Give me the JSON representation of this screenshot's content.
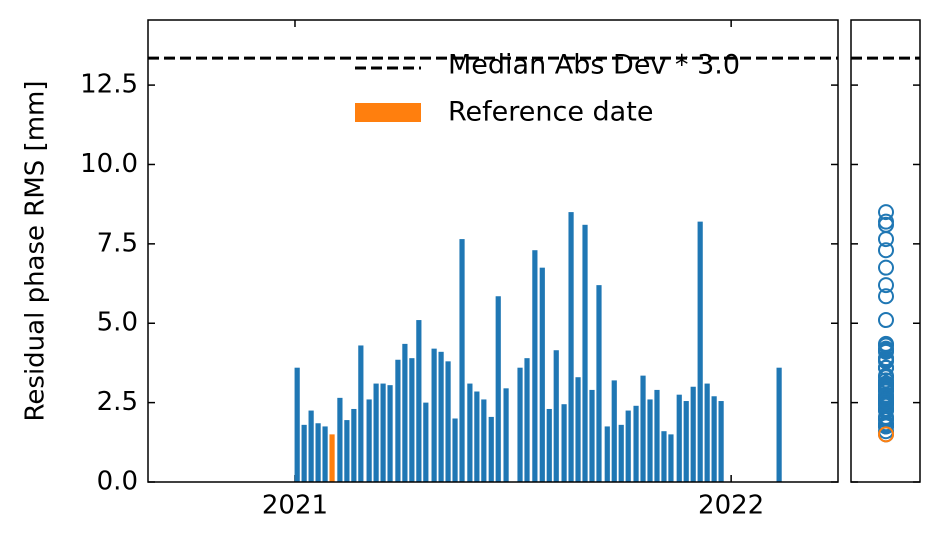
{
  "chart_data": {
    "type": "bar",
    "y_label": "Residual phase RMS [mm]",
    "xlim": [
      2020.663,
      2022.245
    ],
    "xticks": [
      2021,
      2022
    ],
    "ylim": [
      0,
      14.55
    ],
    "yticks": [
      {
        "value": 0,
        "label": "0.0"
      },
      {
        "value": 2.5,
        "label": "2.5"
      },
      {
        "value": 5,
        "label": "5.0"
      },
      {
        "value": 7.5,
        "label": "7.5"
      },
      {
        "value": 10,
        "label": "10.0"
      },
      {
        "value": 12.5,
        "label": "12.5"
      }
    ],
    "threshold": {
      "name": "Median Abs Dev * 3.0",
      "value": 13.35,
      "color": "#000000",
      "style": "dashed"
    },
    "legend": "upper center",
    "series": [
      {
        "color": "#1f77b4",
        "x": [
          2021.005,
          2021.021,
          2021.037,
          2021.053,
          2021.069,
          2021.103,
          2021.119,
          2021.135,
          2021.151,
          2021.17,
          2021.186,
          2021.202,
          2021.218,
          2021.236,
          2021.252,
          2021.268,
          2021.284,
          2021.3,
          2021.319,
          2021.335,
          2021.351,
          2021.367,
          2021.383,
          2021.401,
          2021.417,
          2021.433,
          2021.45,
          2021.466,
          2021.484,
          2021.516,
          2021.532,
          2021.55,
          2021.567,
          2021.583,
          2021.599,
          2021.617,
          2021.633,
          2021.649,
          2021.665,
          2021.681,
          2021.697,
          2021.716,
          2021.732,
          2021.748,
          2021.764,
          2021.782,
          2021.798,
          2021.814,
          2021.83,
          2021.846,
          2021.862,
          2021.881,
          2021.897,
          2021.913,
          2021.929,
          2021.945,
          2021.961,
          2021.977,
          2022.11
        ],
        "values": [
          3.6,
          1.8,
          2.25,
          1.85,
          1.75,
          2.65,
          1.95,
          2.3,
          4.3,
          2.6,
          3.1,
          3.1,
          3.05,
          3.85,
          4.35,
          3.9,
          5.1,
          2.5,
          4.2,
          4.1,
          3.8,
          2.0,
          7.65,
          3.1,
          2.85,
          2.6,
          2.05,
          5.85,
          2.95,
          3.6,
          3.9,
          7.3,
          6.75,
          2.3,
          4.15,
          2.45,
          8.5,
          3.3,
          8.1,
          2.9,
          6.2,
          1.75,
          3.2,
          1.8,
          2.25,
          2.4,
          3.35,
          2.6,
          2.9,
          1.6,
          1.5,
          2.75,
          2.55,
          3.0,
          8.2,
          3.1,
          2.7,
          2.55,
          3.6
        ]
      },
      {
        "name": "Reference date",
        "color": "#ff7f0e",
        "x": [
          2021.085
        ],
        "values": [
          1.5
        ]
      }
    ]
  }
}
